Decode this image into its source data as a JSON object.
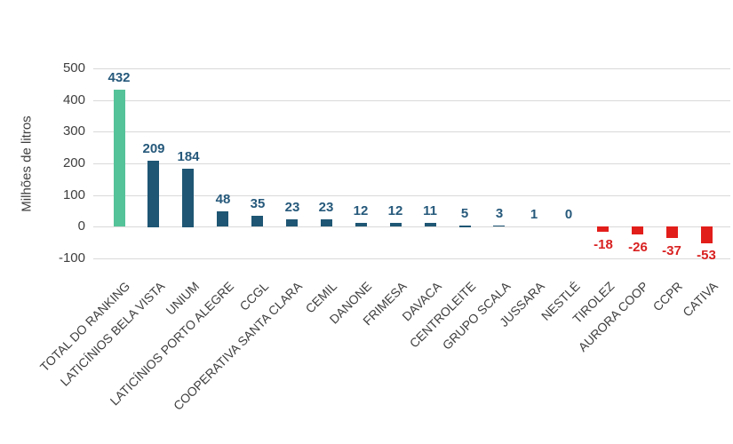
{
  "chart_data": {
    "type": "bar",
    "title": "",
    "ylabel": "Milhões de litros",
    "xlabel": "",
    "ylim": [
      -100,
      500
    ],
    "yticks": [
      500,
      400,
      300,
      200,
      100,
      0,
      -100
    ],
    "grid": true,
    "legend": "none",
    "categories": [
      "TOTAL DO RANKING",
      "LATICÍNIOS BELA VISTA",
      "UNIUM",
      "LATICÍNIOS PORTO ALEGRE",
      "CCGL",
      "COOPERATIVA SANTA CLARA",
      "CEMIL",
      "DANONE",
      "FRIMESA",
      "DAVACA",
      "CENTROLEITE",
      "GRUPO SCALA",
      "JUSSARA",
      "NESTLÉ",
      "TIROLEZ",
      "AURORA COOP",
      "CCPR",
      "CATIVA"
    ],
    "values": [
      432,
      209,
      184,
      48,
      35,
      23,
      23,
      12,
      12,
      11,
      5,
      3,
      1,
      0,
      -18,
      -26,
      -37,
      -53
    ],
    "colors": {
      "total_bar": "#55C399",
      "positive_bar": "#1F5674",
      "negative_bar": "#E21E1B",
      "positive_label": "#26597B",
      "negative_label": "#D92121",
      "axis_text": "#3F3F3F",
      "gridline": "#D9D9D9"
    }
  }
}
